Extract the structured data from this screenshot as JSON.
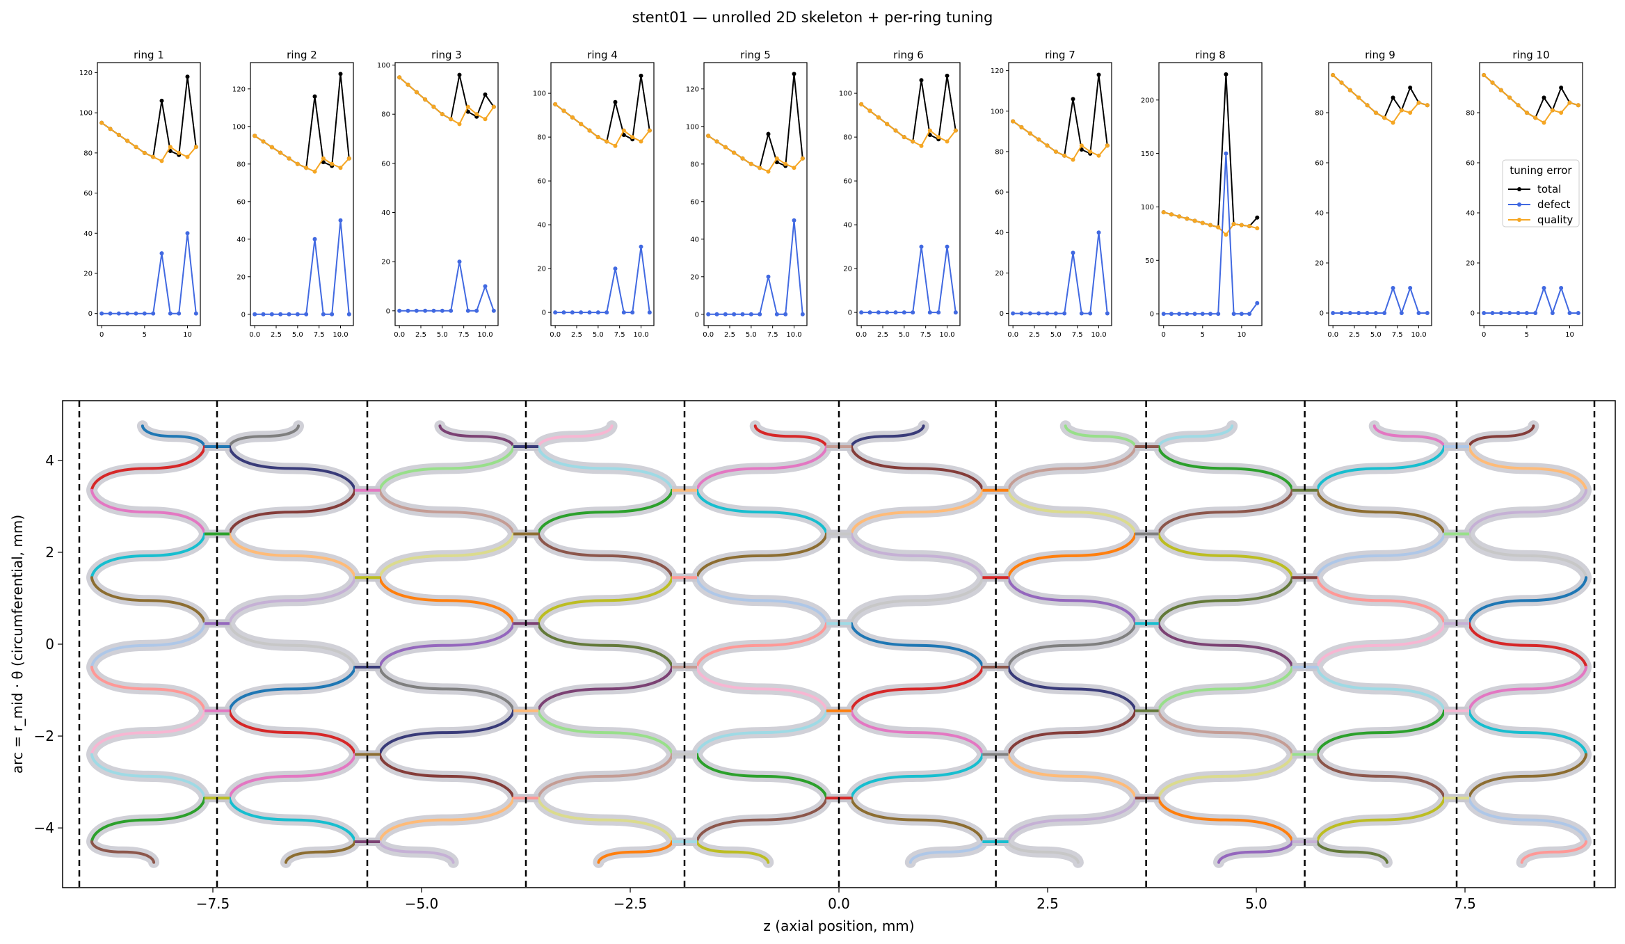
{
  "title": "stent01 — unrolled 2D skeleton + per-ring tuning",
  "colors": {
    "total": "#000000",
    "defect": "#4169e1",
    "quality": "#f5a623",
    "halo": "#c8c8d0",
    "boundary": "#000000",
    "palette": [
      "#1f77b4",
      "#ff7f0e",
      "#2ca02c",
      "#d62728",
      "#9467bd",
      "#8c564b",
      "#e377c2",
      "#7f7f7f",
      "#bcbd22",
      "#17becf",
      "#393b79",
      "#637939",
      "#8c6d31",
      "#843c39",
      "#7b4173",
      "#aec7e8",
      "#ffbb78",
      "#98df8a",
      "#ff9896",
      "#c5b0d5",
      "#c49c94",
      "#f7b6d2",
      "#c7c7c7",
      "#dbdb8d",
      "#9edae5"
    ]
  },
  "legend": {
    "title": "tuning error",
    "entries": [
      "total",
      "defect",
      "quality"
    ]
  },
  "chart_data": [
    {
      "type": "line",
      "title": "ring 1",
      "x": [
        0,
        1,
        2,
        3,
        4,
        5,
        6,
        7,
        8,
        9,
        10,
        11
      ],
      "xticks": [
        0,
        5,
        10
      ],
      "xlim": [
        -0.5,
        11.5
      ],
      "yticks": [
        0,
        20,
        40,
        60,
        80,
        100,
        120
      ],
      "ylim": [
        -6,
        125
      ],
      "series": [
        {
          "name": "total",
          "values": [
            95,
            92,
            89,
            86,
            83,
            80,
            78,
            106,
            81,
            79,
            118,
            83
          ]
        },
        {
          "name": "defect",
          "values": [
            0,
            0,
            0,
            0,
            0,
            0,
            0,
            30,
            0,
            0,
            40,
            0
          ]
        },
        {
          "name": "quality",
          "values": [
            95,
            92,
            89,
            86,
            83,
            80,
            78,
            76,
            83,
            80,
            78,
            83
          ]
        }
      ]
    },
    {
      "type": "line",
      "title": "ring 2",
      "x": [
        0,
        1,
        2,
        3,
        4,
        5,
        6,
        7,
        8,
        9,
        10,
        11
      ],
      "xticks": [
        "0.0",
        "2.5",
        "5.0",
        "7.5",
        "10.0"
      ],
      "xlim": [
        -0.5,
        11.5
      ],
      "yticks": [
        0,
        20,
        40,
        60,
        80,
        100,
        120
      ],
      "ylim": [
        -6,
        134
      ],
      "series": [
        {
          "name": "total",
          "values": [
            95,
            92,
            89,
            86,
            83,
            80,
            78,
            116,
            81,
            79,
            128,
            83
          ]
        },
        {
          "name": "defect",
          "values": [
            0,
            0,
            0,
            0,
            0,
            0,
            0,
            40,
            0,
            0,
            50,
            0
          ]
        },
        {
          "name": "quality",
          "values": [
            95,
            92,
            89,
            86,
            83,
            80,
            78,
            76,
            83,
            80,
            78,
            83
          ]
        }
      ]
    },
    {
      "type": "line",
      "title": "ring 3",
      "x": [
        0,
        1,
        2,
        3,
        4,
        5,
        6,
        7,
        8,
        9,
        10,
        11
      ],
      "xticks": [
        "0.0",
        "2.5",
        "5.0",
        "7.5",
        "10.0"
      ],
      "xlim": [
        -0.5,
        11.5
      ],
      "yticks": [
        0,
        20,
        40,
        60,
        80,
        100
      ],
      "ylim": [
        -6,
        101
      ],
      "series": [
        {
          "name": "total",
          "values": [
            95,
            92,
            89,
            86,
            83,
            80,
            78,
            96,
            81,
            79,
            88,
            83
          ]
        },
        {
          "name": "defect",
          "values": [
            0,
            0,
            0,
            0,
            0,
            0,
            0,
            20,
            0,
            0,
            10,
            0
          ]
        },
        {
          "name": "quality",
          "values": [
            95,
            92,
            89,
            86,
            83,
            80,
            78,
            76,
            83,
            80,
            78,
            83
          ]
        }
      ]
    },
    {
      "type": "line",
      "title": "ring 4",
      "x": [
        0,
        1,
        2,
        3,
        4,
        5,
        6,
        7,
        8,
        9,
        10,
        11
      ],
      "xticks": [
        "0.0",
        "2.5",
        "5.0",
        "7.5",
        "10.0"
      ],
      "xlim": [
        -0.5,
        11.5
      ],
      "yticks": [
        0,
        20,
        40,
        60,
        80,
        100
      ],
      "ylim": [
        -6,
        114
      ],
      "series": [
        {
          "name": "total",
          "values": [
            95,
            92,
            89,
            86,
            83,
            80,
            78,
            96,
            81,
            79,
            108,
            83
          ]
        },
        {
          "name": "defect",
          "values": [
            0,
            0,
            0,
            0,
            0,
            0,
            0,
            20,
            0,
            0,
            30,
            0
          ]
        },
        {
          "name": "quality",
          "values": [
            95,
            92,
            89,
            86,
            83,
            80,
            78,
            76,
            83,
            80,
            78,
            83
          ]
        }
      ]
    },
    {
      "type": "line",
      "title": "ring 5",
      "x": [
        0,
        1,
        2,
        3,
        4,
        5,
        6,
        7,
        8,
        9,
        10,
        11
      ],
      "xticks": [
        "0.0",
        "2.5",
        "5.0",
        "7.5",
        "10.0"
      ],
      "xlim": [
        -0.5,
        11.5
      ],
      "yticks": [
        0,
        20,
        40,
        60,
        80,
        100,
        120
      ],
      "ylim": [
        -6,
        134
      ],
      "series": [
        {
          "name": "total",
          "values": [
            95,
            92,
            89,
            86,
            83,
            80,
            78,
            96,
            81,
            79,
            128,
            83
          ]
        },
        {
          "name": "defect",
          "values": [
            0,
            0,
            0,
            0,
            0,
            0,
            0,
            20,
            0,
            0,
            50,
            0
          ]
        },
        {
          "name": "quality",
          "values": [
            95,
            92,
            89,
            86,
            83,
            80,
            78,
            76,
            83,
            80,
            78,
            83
          ]
        }
      ]
    },
    {
      "type": "line",
      "title": "ring 6",
      "x": [
        0,
        1,
        2,
        3,
        4,
        5,
        6,
        7,
        8,
        9,
        10,
        11
      ],
      "xticks": [
        "0.0",
        "2.5",
        "5.0",
        "7.5",
        "10.0"
      ],
      "xlim": [
        -0.5,
        11.5
      ],
      "yticks": [
        0,
        20,
        40,
        60,
        80,
        100
      ],
      "ylim": [
        -6,
        114
      ],
      "series": [
        {
          "name": "total",
          "values": [
            95,
            92,
            89,
            86,
            83,
            80,
            78,
            106,
            81,
            79,
            108,
            83
          ]
        },
        {
          "name": "defect",
          "values": [
            0,
            0,
            0,
            0,
            0,
            0,
            0,
            30,
            0,
            0,
            30,
            0
          ]
        },
        {
          "name": "quality",
          "values": [
            95,
            92,
            89,
            86,
            83,
            80,
            78,
            76,
            83,
            80,
            78,
            83
          ]
        }
      ]
    },
    {
      "type": "line",
      "title": "ring 7",
      "x": [
        0,
        1,
        2,
        3,
        4,
        5,
        6,
        7,
        8,
        9,
        10,
        11
      ],
      "xticks": [
        "0.0",
        "2.5",
        "5.0",
        "7.5",
        "10.0"
      ],
      "xlim": [
        -0.5,
        11.5
      ],
      "yticks": [
        0,
        20,
        40,
        60,
        80,
        100,
        120
      ],
      "ylim": [
        -6,
        124
      ],
      "series": [
        {
          "name": "total",
          "values": [
            95,
            92,
            89,
            86,
            83,
            80,
            78,
            106,
            81,
            79,
            118,
            83
          ]
        },
        {
          "name": "defect",
          "values": [
            0,
            0,
            0,
            0,
            0,
            0,
            0,
            30,
            0,
            0,
            40,
            0
          ]
        },
        {
          "name": "quality",
          "values": [
            95,
            92,
            89,
            86,
            83,
            80,
            78,
            76,
            83,
            80,
            78,
            83
          ]
        }
      ]
    },
    {
      "type": "line",
      "title": "ring 8",
      "x": [
        0,
        1,
        2,
        3,
        4,
        5,
        6,
        7,
        8,
        9,
        10,
        11,
        12
      ],
      "xticks": [
        0,
        5,
        10
      ],
      "xlim": [
        -0.6,
        12.6
      ],
      "yticks": [
        0,
        50,
        100,
        150,
        200
      ],
      "ylim": [
        -11,
        235
      ],
      "series": [
        {
          "name": "total",
          "values": [
            95,
            93,
            91,
            89,
            87,
            85,
            83,
            81,
            224,
            84,
            83,
            82,
            90
          ]
        },
        {
          "name": "defect",
          "values": [
            0,
            0,
            0,
            0,
            0,
            0,
            0,
            0,
            150,
            0,
            0,
            0,
            10
          ]
        },
        {
          "name": "quality",
          "values": [
            95,
            93,
            91,
            89,
            87,
            85,
            83,
            81,
            74,
            84,
            83,
            82,
            80
          ]
        }
      ]
    },
    {
      "type": "line",
      "title": "ring 9",
      "x": [
        0,
        1,
        2,
        3,
        4,
        5,
        6,
        7,
        8,
        9,
        10,
        11
      ],
      "xticks": [
        "0.0",
        "2.5",
        "5.0",
        "7.5",
        "10.0"
      ],
      "xlim": [
        -0.5,
        11.5
      ],
      "yticks": [
        0,
        20,
        40,
        60,
        80
      ],
      "ylim": [
        -5,
        100
      ],
      "series": [
        {
          "name": "total",
          "values": [
            95,
            92,
            89,
            86,
            83,
            80,
            78,
            86,
            81,
            90,
            84,
            83
          ]
        },
        {
          "name": "defect",
          "values": [
            0,
            0,
            0,
            0,
            0,
            0,
            0,
            10,
            0,
            10,
            0,
            0
          ]
        },
        {
          "name": "quality",
          "values": [
            95,
            92,
            89,
            86,
            83,
            80,
            78,
            76,
            81,
            80,
            84,
            83
          ]
        }
      ]
    },
    {
      "type": "line",
      "title": "ring 10",
      "x": [
        0,
        1,
        2,
        3,
        4,
        5,
        6,
        7,
        8,
        9,
        10,
        11
      ],
      "xticks": [
        0,
        5,
        10
      ],
      "xlim": [
        -0.5,
        11.5
      ],
      "yticks": [
        0,
        20,
        40,
        60,
        80
      ],
      "ylim": [
        -5,
        100
      ],
      "series": [
        {
          "name": "total",
          "values": [
            95,
            92,
            89,
            86,
            83,
            80,
            78,
            86,
            81,
            90,
            84,
            83
          ]
        },
        {
          "name": "defect",
          "values": [
            0,
            0,
            0,
            0,
            0,
            0,
            0,
            10,
            0,
            10,
            0,
            0
          ]
        },
        {
          "name": "quality",
          "values": [
            95,
            92,
            89,
            86,
            83,
            80,
            78,
            76,
            81,
            80,
            84,
            83
          ]
        }
      ]
    },
    {
      "type": "line",
      "title": "",
      "xlabel": "z  (axial position, mm)",
      "ylabel": "arc = r_mid · θ  (circumferential, mm)",
      "xlim": [
        -9.3,
        9.3
      ],
      "ylim": [
        -5.3,
        5.3
      ],
      "xticks": [
        {
          "v": -7.5,
          "label": "−7.5"
        },
        {
          "v": -5.0,
          "label": "−5.0"
        },
        {
          "v": -2.5,
          "label": "−2.5"
        },
        {
          "v": 0.0,
          "label": "0.0"
        },
        {
          "v": 2.5,
          "label": "2.5"
        },
        {
          "v": 5.0,
          "label": "5.0"
        },
        {
          "v": 7.5,
          "label": "7.5"
        }
      ],
      "yticks": [
        {
          "v": -4,
          "label": "−4"
        },
        {
          "v": -2,
          "label": "−2"
        },
        {
          "v": 0,
          "label": "0"
        },
        {
          "v": 2,
          "label": "2"
        },
        {
          "v": 4,
          "label": "4"
        }
      ],
      "ring_boundaries": [
        -9.1,
        -7.45,
        -5.65,
        -3.75,
        -1.85,
        0.0,
        1.88,
        3.68,
        5.58,
        7.4,
        9.05
      ],
      "rings": [
        {
          "zmin": -8.95,
          "zmax": -7.6,
          "first_bend": "right"
        },
        {
          "zmin": -7.3,
          "zmax": -5.8,
          "first_bend": "left"
        },
        {
          "zmin": -5.5,
          "zmax": -3.9,
          "first_bend": "right"
        },
        {
          "zmin": -3.6,
          "zmax": -2.0,
          "first_bend": "left"
        },
        {
          "zmin": -1.7,
          "zmax": -0.15,
          "first_bend": "right"
        },
        {
          "zmin": 0.15,
          "zmax": 1.72,
          "first_bend": "left"
        },
        {
          "zmin": 2.03,
          "zmax": 3.55,
          "first_bend": "right"
        },
        {
          "zmin": 3.83,
          "zmax": 5.43,
          "first_bend": "left"
        },
        {
          "zmin": 5.73,
          "zmax": 7.25,
          "first_bend": "right"
        },
        {
          "zmin": 7.55,
          "zmax": 8.95,
          "first_bend": "left"
        }
      ],
      "bends_y": [
        4.3,
        3.35,
        2.4,
        1.45,
        0.45,
        -0.5,
        -1.45,
        -2.4,
        -3.35,
        -4.3
      ],
      "end_y": [
        4.75,
        -4.75
      ]
    }
  ]
}
